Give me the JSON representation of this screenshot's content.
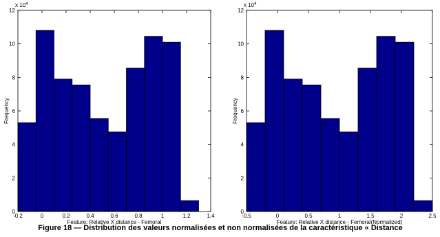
{
  "chart_data": [
    {
      "type": "histogram",
      "xlabel": "Feature: Relative X distance - Femoral",
      "ylabel": "Frequency",
      "y_multiplier": "x 10",
      "y_multiplier_exp": "4",
      "color": "#00008b",
      "bins": [
        -0.2,
        -0.05,
        0.1,
        0.25,
        0.4,
        0.55,
        0.7,
        0.85,
        1.0,
        1.15,
        1.3
      ],
      "values": [
        5.3,
        10.8,
        7.9,
        7.55,
        5.55,
        4.75,
        8.55,
        10.45,
        10.1,
        0.65
      ],
      "xlim": [
        -0.2,
        1.4
      ],
      "xticks": [
        -0.2,
        0,
        0.2,
        0.4,
        0.6,
        0.8,
        1,
        1.2,
        1.4
      ],
      "ylim": [
        0,
        12
      ],
      "yticks": [
        0,
        2,
        4,
        6,
        8,
        10,
        12
      ]
    },
    {
      "type": "histogram",
      "xlabel": "Feature: Relative X distance - Femoral(Normalized)",
      "ylabel": "Frequency",
      "y_multiplier": "x 10",
      "y_multiplier_exp": "4",
      "color": "#00008b",
      "bins": [
        -0.5,
        -0.2,
        0.1,
        0.4,
        0.7,
        1.0,
        1.3,
        1.6,
        1.9,
        2.2,
        2.5
      ],
      "values": [
        5.3,
        10.8,
        7.9,
        7.55,
        5.55,
        4.75,
        8.55,
        10.45,
        10.1,
        0.65
      ],
      "xlim": [
        -0.5,
        2.5
      ],
      "xticks": [
        -0.5,
        0,
        0.5,
        1,
        1.5,
        2,
        2.5
      ],
      "ylim": [
        0,
        12
      ],
      "yticks": [
        0,
        2,
        4,
        6,
        8,
        10,
        12
      ]
    }
  ],
  "caption": "Figure 18 — Distribution des valeurs normalisées et non normalisées de la caractéristique « Distance"
}
